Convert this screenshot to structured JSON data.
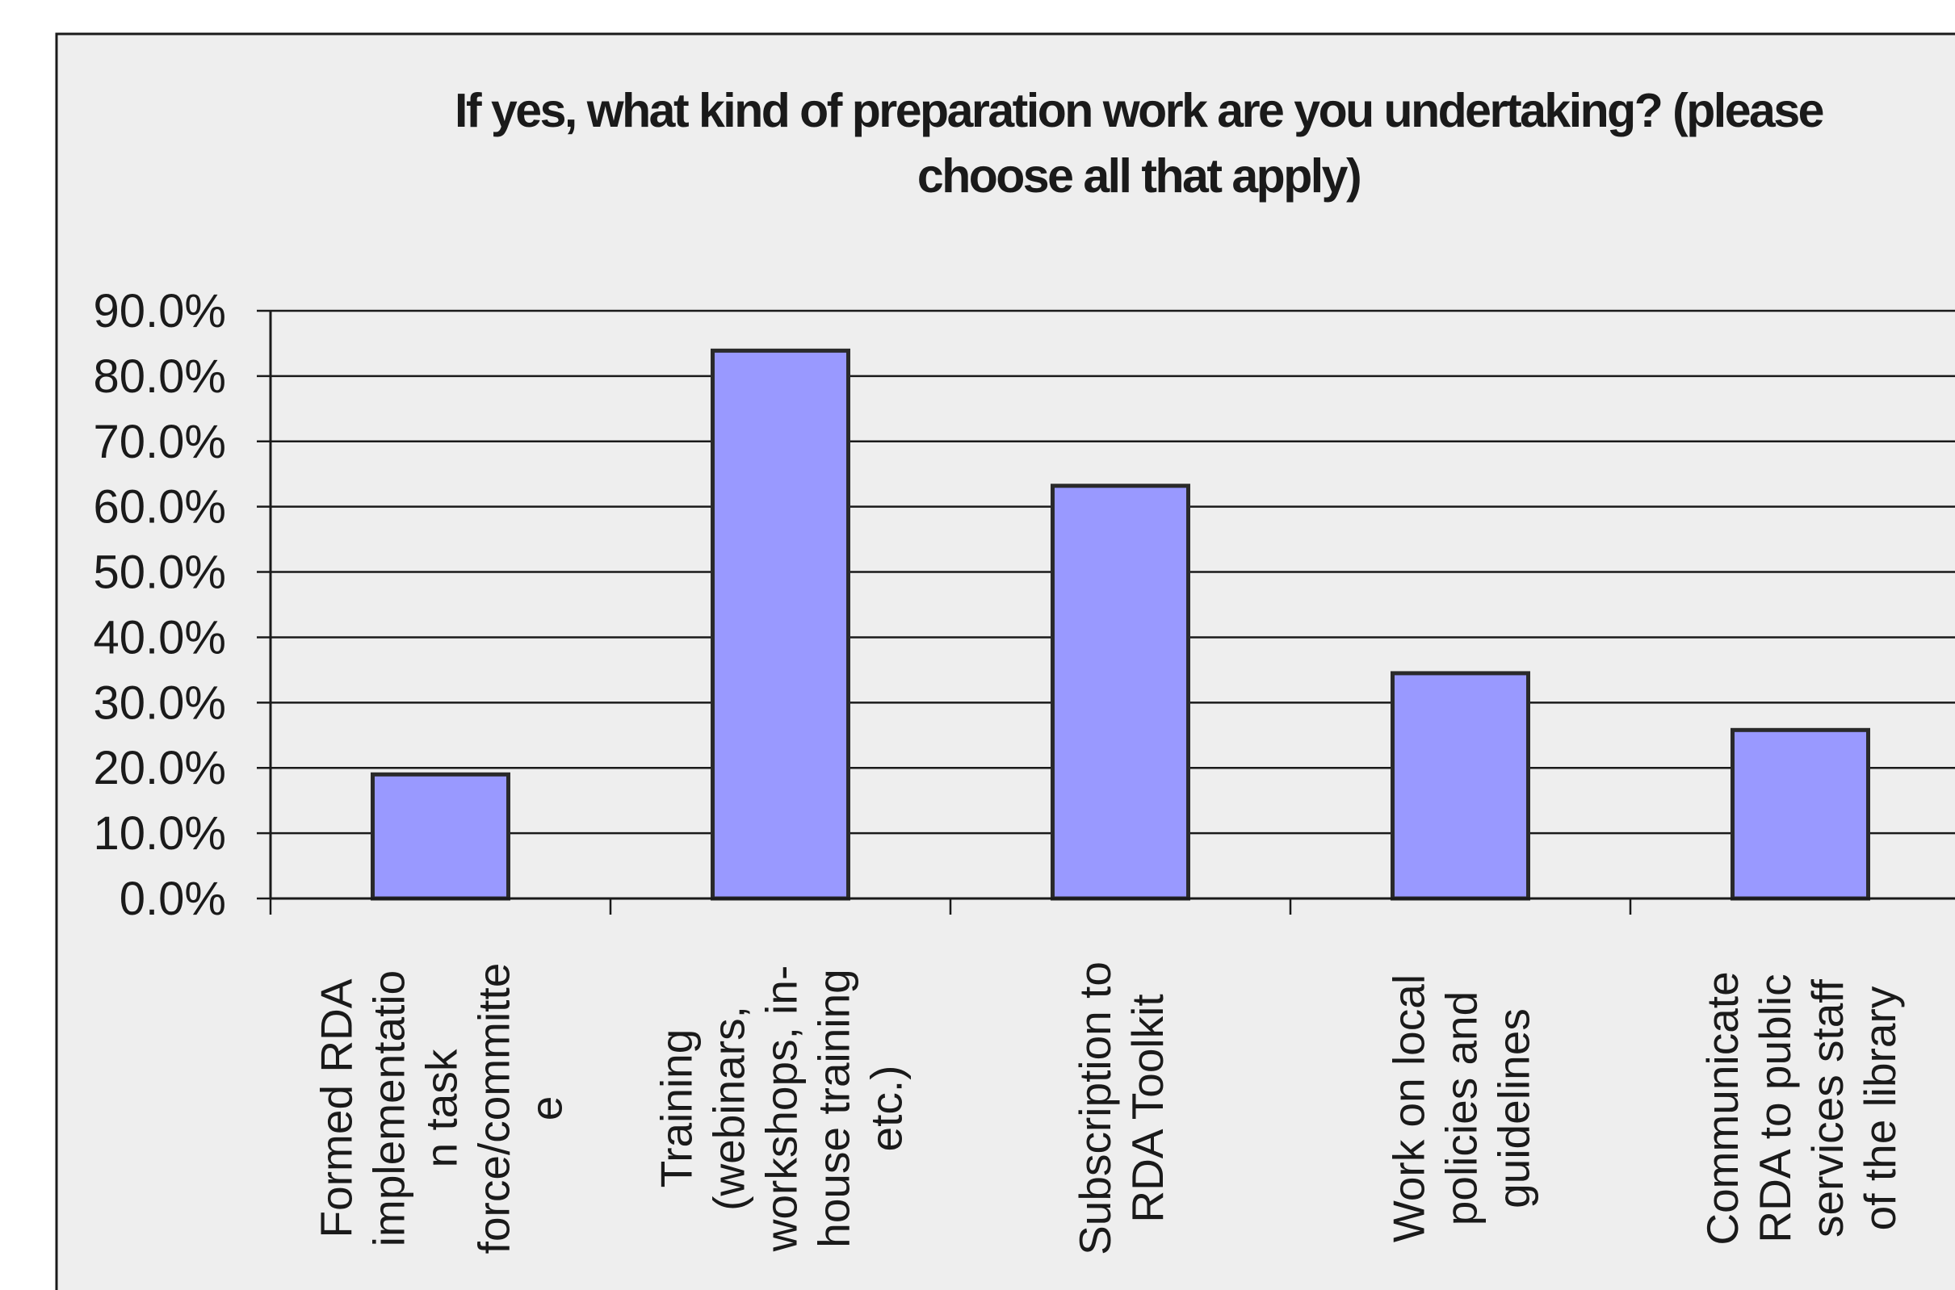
{
  "chart_data": {
    "type": "bar",
    "title": "If yes, what kind of preparation work are you undertaking? (please choose all that apply)",
    "title_lines": [
      "If yes, what kind of preparation work are you undertaking? (please",
      "choose all that apply)"
    ],
    "categories": [
      "Formed RDA implementation task force/committee",
      "Training (webinars, workshops, in-house training etc.)",
      "Subscription to RDA Toolkit",
      "Work on local policies and guidelines",
      "Communicate RDA to public services staff of the library"
    ],
    "category_label_lines": [
      [
        "Formed RDA",
        "implementatio",
        "n task",
        "force/committe",
        "e"
      ],
      [
        "Training",
        "(webinars,",
        "workshops, in-",
        "house training",
        "etc.)"
      ],
      [
        "Subscription to",
        "RDA Toolkit"
      ],
      [
        "Work on local",
        "policies and",
        "guidelines"
      ],
      [
        "Communicate",
        "RDA to public",
        "services staff",
        "of the library"
      ]
    ],
    "values": [
      19.0,
      83.9,
      63.2,
      34.5,
      25.8
    ],
    "ylim": [
      0,
      90
    ],
    "yticks": [
      "0.0%",
      "10.0%",
      "20.0%",
      "30.0%",
      "40.0%",
      "50.0%",
      "60.0%",
      "70.0%",
      "80.0%",
      "90.0%"
    ],
    "xlabel": "",
    "ylabel": "",
    "grid": true,
    "legend": "none",
    "colors": {
      "bar_fill": "#9999ff",
      "bar_stroke": "#2a2a2a",
      "plot_background": "#eeeeee",
      "gridline": "#1a1a1a"
    }
  }
}
